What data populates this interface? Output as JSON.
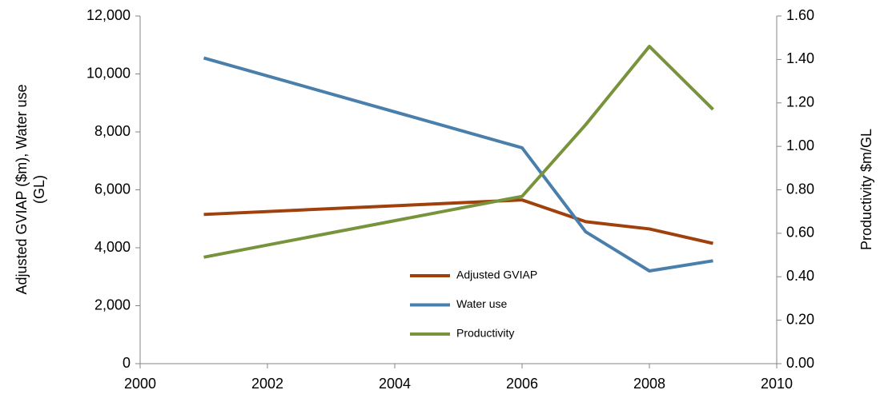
{
  "chart_data": {
    "type": "line",
    "ylabel": [
      "Adjusted GVIAP ($m),  Water use",
      "(GL)"
    ],
    "y2label": "Productivity $m/GL",
    "x": [
      2001,
      2006,
      2007,
      2008,
      2009
    ],
    "xlim": [
      2000,
      2010
    ],
    "xticks": [
      2000,
      2002,
      2004,
      2006,
      2008,
      2010
    ],
    "ylim": [
      0,
      12000
    ],
    "yticks": [
      0,
      {
        "value": 2000,
        "label": "2,000"
      },
      {
        "value": 4000,
        "label": "4,000"
      },
      {
        "value": 6000,
        "label": "6,000"
      },
      {
        "value": 8000,
        "label": "8,000"
      },
      {
        "value": 10000,
        "label": "10,000"
      },
      {
        "value": 12000,
        "label": "12,000"
      }
    ],
    "y2lim": [
      0,
      1.6
    ],
    "y2ticks": [
      {
        "value": 0,
        "label": "0.00"
      },
      {
        "value": 0.2,
        "label": "0.20"
      },
      {
        "value": 0.4,
        "label": "0.40"
      },
      {
        "value": 0.6,
        "label": "0.60"
      },
      {
        "value": 0.8,
        "label": "0.80"
      },
      {
        "value": 1.0,
        "label": "1.00"
      },
      {
        "value": 1.2,
        "label": "1.20"
      },
      {
        "value": 1.4,
        "label": "1.40"
      },
      {
        "value": 1.6,
        "label": "1.60"
      }
    ],
    "grid": false,
    "legend": "center",
    "series": [
      {
        "name": "Adjusted GVIAP",
        "color": "#a0410d",
        "values": [
          5150,
          5650,
          4900,
          4650,
          4150
        ]
      },
      {
        "name": "Water use",
        "color": "#4a7eab",
        "values": [
          10550,
          7450,
          4550,
          3200,
          3550
        ]
      },
      {
        "name": "Productivity",
        "color": "#77933c",
        "axis": "y2",
        "values": [
          0.49,
          0.77,
          1.1,
          1.46,
          1.17
        ]
      }
    ]
  }
}
